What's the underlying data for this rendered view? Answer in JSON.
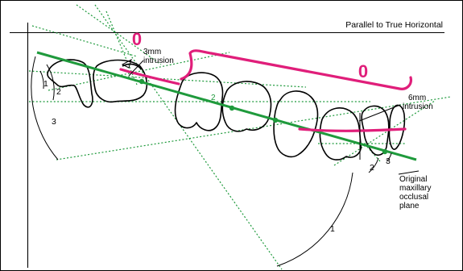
{
  "labels": {
    "reference_line": "Parallel to True Horizontal",
    "intrusion_anterior": [
      "3mm",
      "intrusion"
    ],
    "intrusion_posterior": [
      "6mm",
      "intrusion"
    ],
    "original_plane": [
      "Original",
      "maxillary",
      "occlusal",
      "plane"
    ],
    "marker_anterior": "0",
    "marker_posterior": "0",
    "angle_left_1": "1",
    "angle_left_2": "2",
    "angle_left_3": "3",
    "angle_right_1": "1",
    "angle_right_2": "2",
    "angle_right_3": "3",
    "green_mark": "2"
  },
  "colors": {
    "occlusal_plane": "#1f9a3c",
    "intrusion_marks": "#e01e7a",
    "teeth": "#000000"
  }
}
